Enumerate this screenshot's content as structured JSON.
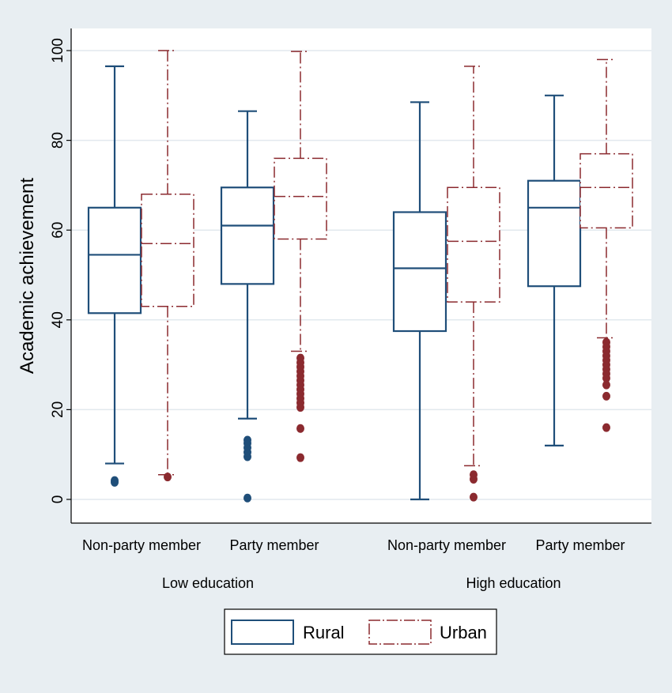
{
  "chart_data": {
    "type": "boxplot",
    "ylabel": "Academic achievement",
    "ylim": [
      0,
      100
    ],
    "yticks": [
      0,
      20,
      40,
      60,
      80,
      100
    ],
    "grid": true,
    "groups": [
      {
        "label": "Low education",
        "categories": [
          "Non-party member",
          "Party member"
        ]
      },
      {
        "label": "High education",
        "categories": [
          "Non-party member",
          "Party member"
        ]
      }
    ],
    "series": [
      {
        "name": "Rural",
        "color": "#1f4e79",
        "style": "solid",
        "boxes": [
          {
            "group": "Low education",
            "category": "Non-party member",
            "whisker_low": 8,
            "q1": 41.5,
            "median": 54.5,
            "q3": 65,
            "whisker_high": 96.5,
            "outliers": [
              3.8,
              4.2
            ]
          },
          {
            "group": "Low education",
            "category": "Party member",
            "whisker_low": 18,
            "q1": 48,
            "median": 61,
            "q3": 69.5,
            "whisker_high": 86.5,
            "outliers": [
              0.3,
              9.5,
              10.5,
              11.5,
              12.5,
              13.2
            ]
          },
          {
            "group": "High education",
            "category": "Non-party member",
            "whisker_low": 0,
            "q1": 37.5,
            "median": 51.5,
            "q3": 64,
            "whisker_high": 88.5,
            "outliers": []
          },
          {
            "group": "High education",
            "category": "Party member",
            "whisker_low": 12,
            "q1": 47.5,
            "median": 65,
            "q3": 71,
            "whisker_high": 90,
            "outliers": []
          }
        ]
      },
      {
        "name": "Urban",
        "color": "#8b2a2f",
        "style": "dash-dot",
        "boxes": [
          {
            "group": "Low education",
            "category": "Non-party member",
            "whisker_low": 5.5,
            "q1": 43,
            "median": 57,
            "q3": 68,
            "whisker_high": 100,
            "outliers": [
              5
            ]
          },
          {
            "group": "Low education",
            "category": "Party member",
            "whisker_low": 33,
            "q1": 58,
            "median": 67.5,
            "q3": 76,
            "whisker_high": 99.8,
            "outliers": [
              9.3,
              15.8,
              20.5,
              21.5,
              22.5,
              23.5,
              24.5,
              25.5,
              26.5,
              27.5,
              28.5,
              29.5,
              30.5,
              31.5
            ]
          },
          {
            "group": "High education",
            "category": "Non-party member",
            "whisker_low": 7.5,
            "q1": 44,
            "median": 57.5,
            "q3": 69.5,
            "whisker_high": 96.5,
            "outliers": [
              0.5,
              4.5,
              5.5
            ]
          },
          {
            "group": "High education",
            "category": "Party member",
            "whisker_low": 36,
            "q1": 60.5,
            "median": 69.5,
            "q3": 77,
            "whisker_high": 98,
            "outliers": [
              16,
              23,
              25.5,
              27,
              28,
              29,
              30,
              31,
              32,
              33,
              34,
              35
            ]
          }
        ]
      }
    ],
    "legend": {
      "entries": [
        "Rural",
        "Urban"
      ],
      "position": "bottom"
    }
  }
}
